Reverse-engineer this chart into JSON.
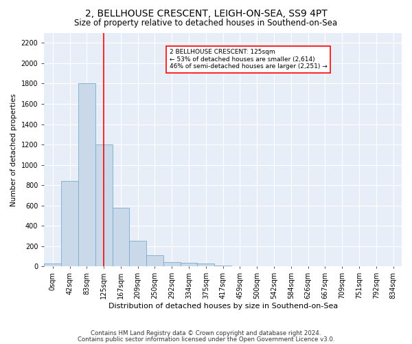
{
  "title1": "2, BELLHOUSE CRESCENT, LEIGH-ON-SEA, SS9 4PT",
  "title2": "Size of property relative to detached houses in Southend-on-Sea",
  "xlabel": "Distribution of detached houses by size in Southend-on-Sea",
  "ylabel": "Number of detached properties",
  "footnote1": "Contains HM Land Registry data © Crown copyright and database right 2024.",
  "footnote2": "Contains public sector information licensed under the Open Government Licence v3.0.",
  "bar_labels": [
    "0sqm",
    "42sqm",
    "83sqm",
    "125sqm",
    "167sqm",
    "209sqm",
    "250sqm",
    "292sqm",
    "334sqm",
    "375sqm",
    "417sqm",
    "459sqm",
    "500sqm",
    "542sqm",
    "584sqm",
    "626sqm",
    "667sqm",
    "709sqm",
    "751sqm",
    "792sqm",
    "834sqm"
  ],
  "bar_values": [
    30,
    840,
    1800,
    1200,
    580,
    255,
    110,
    45,
    40,
    30,
    10,
    0,
    0,
    0,
    0,
    0,
    0,
    0,
    0,
    0,
    0
  ],
  "bar_color": "#c9d9ea",
  "bar_edge_color": "#7aaac8",
  "vline_x": 3,
  "vline_color": "red",
  "annotation_text": "2 BELLHOUSE CRESCENT: 125sqm\n← 53% of detached houses are smaller (2,614)\n46% of semi-detached houses are larger (2,251) →",
  "annotation_box_color": "white",
  "annotation_box_edge_color": "red",
  "ylim": [
    0,
    2300
  ],
  "yticks": [
    0,
    200,
    400,
    600,
    800,
    1000,
    1200,
    1400,
    1600,
    1800,
    2000,
    2200
  ],
  "bg_color": "#e8eef8",
  "grid_color": "white",
  "title1_fontsize": 10,
  "title2_fontsize": 8.5,
  "xlabel_fontsize": 8,
  "ylabel_fontsize": 7.5,
  "tick_fontsize": 7,
  "annot_fontsize": 6.5,
  "footnote_fontsize": 6.2
}
